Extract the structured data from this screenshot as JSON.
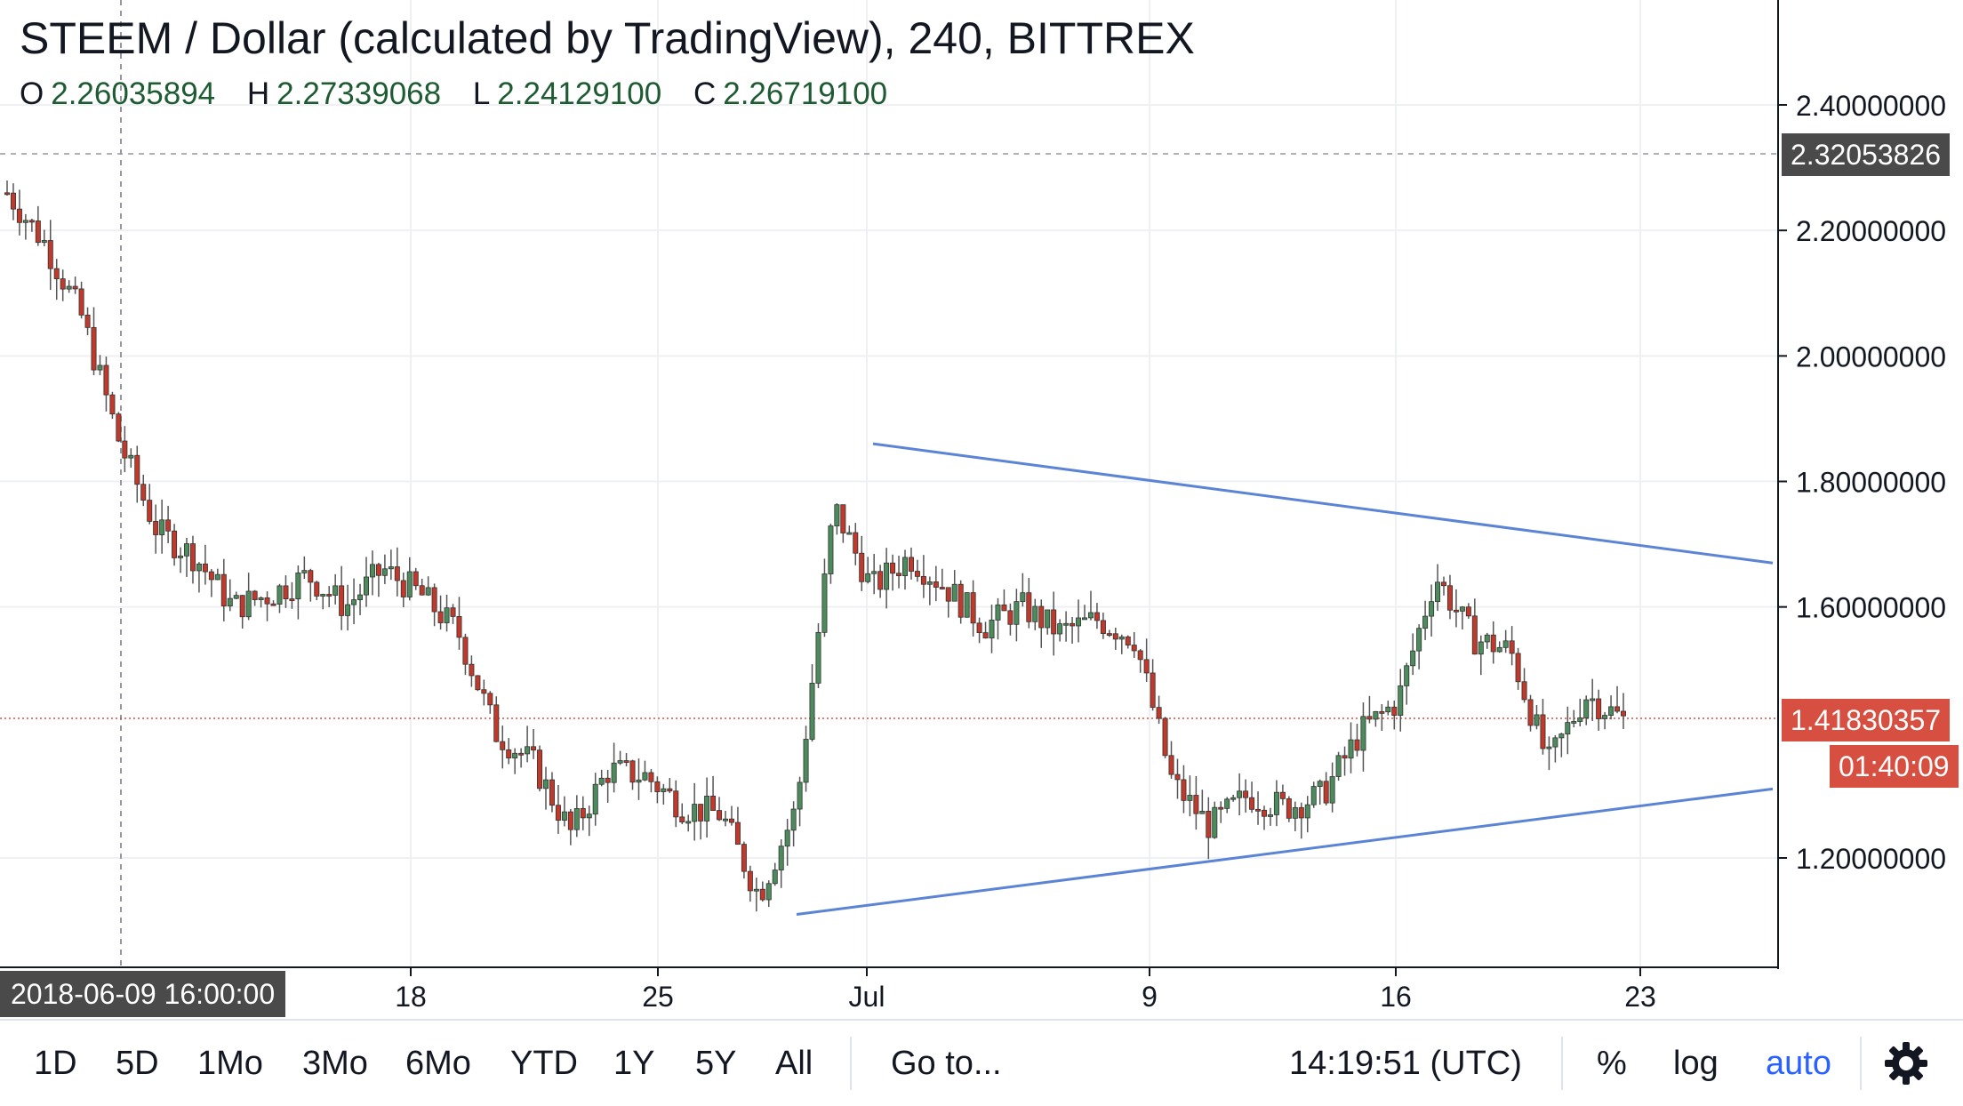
{
  "header": {
    "title": "STEEM / Dollar (calculated by TradingView), 240, BITTREX",
    "ohlc": [
      {
        "key": "O",
        "value": "2.26035894"
      },
      {
        "key": "H",
        "value": "2.27339068"
      },
      {
        "key": "L",
        "value": "2.24129100"
      },
      {
        "key": "C",
        "value": "2.26719100"
      }
    ]
  },
  "price_axis": {
    "labels": [
      "2.40000000",
      "2.20000000",
      "2.00000000",
      "1.80000000",
      "1.60000000",
      "1.20000000"
    ],
    "crosshair_price": "2.32053826",
    "last_price": "1.41830357",
    "countdown": "01:40:09"
  },
  "time_axis": {
    "labels": [
      "18",
      "25",
      "Jul",
      "9",
      "16",
      "23"
    ],
    "crosshair_time": "2018-06-09 16:00:00"
  },
  "toolbar": {
    "ranges": [
      "1D",
      "5D",
      "1Mo",
      "3Mo",
      "6Mo",
      "YTD",
      "1Y",
      "5Y",
      "All"
    ],
    "goto": "Go to...",
    "clock": "14:19:51 (UTC)",
    "percent": "%",
    "log": "log",
    "auto": "auto"
  },
  "colors": {
    "up": "#4c8c5c",
    "down": "#c0392b",
    "trendline": "#5b84d6",
    "last_price_tag": "#d64f40",
    "crosshair_tag": "#4a4a4a"
  },
  "chart_data": {
    "type": "candlestick",
    "title": "STEEM / Dollar (calculated by TradingView), 240, BITTREX",
    "interval": "240",
    "ylim": [
      1.0,
      2.5
    ],
    "x_ticks": [
      "18",
      "25",
      "Jul",
      "9",
      "16",
      "23"
    ],
    "y_ticks": [
      1.2,
      1.6,
      1.8,
      2.0,
      2.2,
      2.4
    ],
    "last_price": 1.41830357,
    "close_path": [
      [
        2018.0,
        2.26
      ],
      [
        2018.4,
        2.18
      ],
      [
        2018.7,
        2.06
      ],
      [
        2018.9,
        1.86
      ],
      [
        2019.2,
        1.72
      ],
      [
        2019.5,
        1.68
      ],
      [
        2019.8,
        1.6
      ],
      [
        2020.1,
        1.62
      ],
      [
        2020.4,
        1.65
      ],
      [
        2020.7,
        1.6
      ],
      [
        2021.0,
        1.66
      ],
      [
        2021.3,
        1.62
      ],
      [
        2021.6,
        1.56
      ],
      [
        2021.9,
        1.4
      ],
      [
        2022.2,
        1.35
      ],
      [
        2022.5,
        1.24
      ],
      [
        2022.8,
        1.34
      ],
      [
        2023.1,
        1.33
      ],
      [
        2023.4,
        1.28
      ],
      [
        2023.7,
        1.27
      ],
      [
        2024.0,
        1.14
      ],
      [
        2024.3,
        1.28
      ],
      [
        2024.6,
        1.76
      ],
      [
        2024.9,
        1.63
      ],
      [
        2025.2,
        1.68
      ],
      [
        2025.5,
        1.63
      ],
      [
        2025.8,
        1.57
      ],
      [
        2026.1,
        1.6
      ],
      [
        2026.4,
        1.56
      ],
      [
        2026.7,
        1.58
      ],
      [
        2027.0,
        1.55
      ],
      [
        2027.3,
        1.32
      ],
      [
        2027.6,
        1.25
      ],
      [
        2027.9,
        1.3
      ],
      [
        2028.2,
        1.28
      ],
      [
        2028.5,
        1.3
      ],
      [
        2028.8,
        1.4
      ],
      [
        2029.1,
        1.45
      ],
      [
        2029.4,
        1.65
      ],
      [
        2029.7,
        1.55
      ],
      [
        2030.0,
        1.53
      ],
      [
        2030.3,
        1.35
      ],
      [
        2030.6,
        1.46
      ],
      [
        2030.8,
        1.42
      ]
    ],
    "trendlines": [
      {
        "name": "",
        "from_price": 1.86,
        "to_price": 1.67
      },
      {
        "name": "",
        "from_price": 1.11,
        "to_price": 1.31
      }
    ]
  }
}
